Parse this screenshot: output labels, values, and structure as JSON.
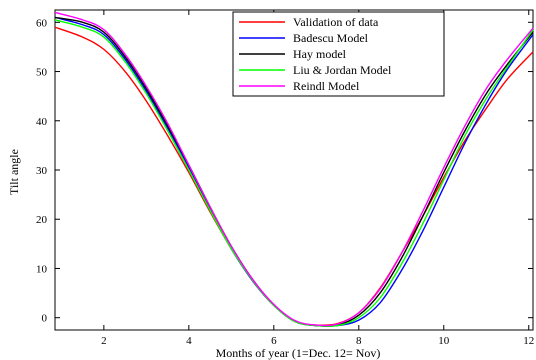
{
  "chart_data": {
    "type": "line",
    "title": "",
    "xlabel": "Months of year (1=Dec. 12= Nov)",
    "ylabel": "Tilt angle",
    "xlim": [
      0.85,
      12.1
    ],
    "ylim": [
      -2.5,
      62.5
    ],
    "xticks": [
      2,
      4,
      6,
      8,
      10,
      12
    ],
    "yticks": [
      0,
      10,
      20,
      30,
      40,
      50,
      60
    ],
    "grid": false,
    "legend_position": "top-right",
    "series": [
      {
        "name": "Validation of data",
        "color": "#ff0000",
        "points": [
          [
            0.85,
            59.0
          ],
          [
            1.5,
            57.0
          ],
          [
            2.0,
            54.5
          ],
          [
            2.5,
            50.0
          ],
          [
            3.0,
            44.0
          ],
          [
            3.5,
            37.0
          ],
          [
            4.0,
            29.5
          ],
          [
            4.5,
            21.5
          ],
          [
            5.0,
            14.0
          ],
          [
            5.5,
            7.5
          ],
          [
            6.0,
            2.5
          ],
          [
            6.5,
            -0.8
          ],
          [
            7.0,
            -1.5
          ],
          [
            7.5,
            -1.2
          ],
          [
            8.0,
            1.0
          ],
          [
            8.5,
            6.0
          ],
          [
            9.0,
            13.0
          ],
          [
            9.5,
            20.5
          ],
          [
            10.0,
            28.5
          ],
          [
            10.5,
            36.0
          ],
          [
            11.0,
            42.5
          ],
          [
            11.5,
            48.5
          ],
          [
            12.1,
            54.0
          ]
        ]
      },
      {
        "name": "Badescu Model",
        "color": "#0000ff",
        "points": [
          [
            0.85,
            61.0
          ],
          [
            1.5,
            59.5
          ],
          [
            2.0,
            57.5
          ],
          [
            2.5,
            52.5
          ],
          [
            3.0,
            46.0
          ],
          [
            3.5,
            38.5
          ],
          [
            4.0,
            30.5
          ],
          [
            4.5,
            22.0
          ],
          [
            5.0,
            14.0
          ],
          [
            5.5,
            7.5
          ],
          [
            6.0,
            2.5
          ],
          [
            6.5,
            -0.8
          ],
          [
            7.0,
            -1.6
          ],
          [
            7.5,
            -1.6
          ],
          [
            8.0,
            -0.5
          ],
          [
            8.5,
            3.0
          ],
          [
            9.0,
            9.5
          ],
          [
            9.5,
            17.5
          ],
          [
            10.0,
            26.5
          ],
          [
            10.5,
            35.5
          ],
          [
            11.0,
            43.5
          ],
          [
            11.5,
            50.5
          ],
          [
            12.1,
            57.5
          ]
        ]
      },
      {
        "name": "Hay model",
        "color": "#000000",
        "points": [
          [
            0.85,
            61.0
          ],
          [
            1.5,
            60.0
          ],
          [
            2.0,
            58.0
          ],
          [
            2.5,
            53.0
          ],
          [
            3.0,
            46.5
          ],
          [
            3.5,
            39.0
          ],
          [
            4.0,
            31.0
          ],
          [
            4.5,
            22.5
          ],
          [
            5.0,
            14.5
          ],
          [
            5.5,
            7.8
          ],
          [
            6.0,
            2.6
          ],
          [
            6.5,
            -0.7
          ],
          [
            7.0,
            -1.6
          ],
          [
            7.5,
            -1.5
          ],
          [
            8.0,
            0.5
          ],
          [
            8.5,
            5.0
          ],
          [
            9.0,
            12.0
          ],
          [
            9.5,
            20.5
          ],
          [
            10.0,
            29.5
          ],
          [
            10.5,
            38.0
          ],
          [
            11.0,
            45.5
          ],
          [
            11.5,
            51.5
          ],
          [
            12.1,
            58.0
          ]
        ]
      },
      {
        "name": "Liu & Jordan Model",
        "color": "#00ff00",
        "points": [
          [
            0.85,
            60.5
          ],
          [
            1.5,
            59.0
          ],
          [
            2.0,
            57.0
          ],
          [
            2.5,
            52.0
          ],
          [
            3.0,
            45.5
          ],
          [
            3.5,
            38.0
          ],
          [
            4.0,
            30.0
          ],
          [
            4.5,
            21.8
          ],
          [
            5.0,
            14.0
          ],
          [
            5.5,
            7.6
          ],
          [
            6.0,
            2.5
          ],
          [
            6.5,
            -0.8
          ],
          [
            7.0,
            -1.6
          ],
          [
            7.5,
            -1.6
          ],
          [
            8.0,
            0.0
          ],
          [
            8.5,
            4.0
          ],
          [
            9.0,
            10.8
          ],
          [
            9.5,
            19.0
          ],
          [
            10.0,
            28.0
          ],
          [
            10.5,
            37.0
          ],
          [
            11.0,
            44.5
          ],
          [
            11.5,
            51.0
          ],
          [
            12.1,
            58.5
          ]
        ]
      },
      {
        "name": "Reindl Model",
        "color": "#ff00ff",
        "points": [
          [
            0.85,
            62.0
          ],
          [
            1.5,
            60.5
          ],
          [
            2.0,
            58.5
          ],
          [
            2.5,
            53.5
          ],
          [
            3.0,
            47.0
          ],
          [
            3.5,
            39.5
          ],
          [
            4.0,
            31.0
          ],
          [
            4.5,
            22.5
          ],
          [
            5.0,
            14.5
          ],
          [
            5.5,
            7.8
          ],
          [
            6.0,
            2.7
          ],
          [
            6.5,
            -0.6
          ],
          [
            7.0,
            -1.5
          ],
          [
            7.5,
            -1.3
          ],
          [
            8.0,
            1.0
          ],
          [
            8.5,
            5.8
          ],
          [
            9.0,
            13.0
          ],
          [
            9.5,
            21.5
          ],
          [
            10.0,
            30.5
          ],
          [
            10.5,
            39.0
          ],
          [
            11.0,
            46.5
          ],
          [
            11.5,
            52.5
          ],
          [
            12.1,
            58.8
          ]
        ]
      }
    ]
  }
}
